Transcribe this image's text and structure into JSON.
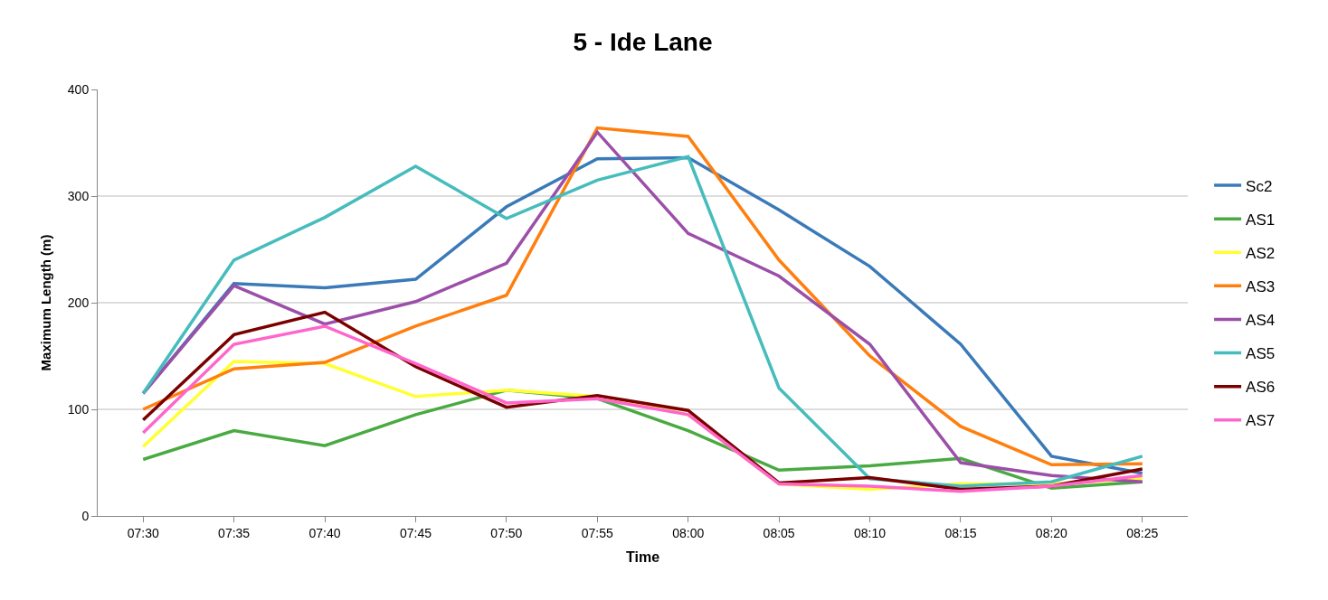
{
  "chart_data": {
    "type": "line",
    "title": "5 - Ide Lane",
    "xlabel": "Time",
    "ylabel": "Maximum Length (m)",
    "categories": [
      "07:30",
      "07:35",
      "07:40",
      "07:45",
      "07:50",
      "07:55",
      "08:00",
      "08:05",
      "08:10",
      "08:15",
      "08:20",
      "08:25"
    ],
    "ylim": [
      0,
      400
    ],
    "yticks": [
      0,
      100,
      200,
      300,
      400
    ],
    "grid": "y",
    "legend": "right",
    "marker": "none",
    "line_style": "solid",
    "series": [
      {
        "name": "Sc2",
        "color": "#3a7ab8",
        "values": [
          115,
          218,
          214,
          222,
          290,
          335,
          336,
          287,
          234,
          161,
          56,
          40
        ]
      },
      {
        "name": "AS1",
        "color": "#4aaa42",
        "values": [
          53,
          80,
          66,
          95,
          118,
          110,
          80,
          43,
          47,
          54,
          26,
          32
        ]
      },
      {
        "name": "AS2",
        "color": "#ffff33",
        "values": [
          65,
          145,
          143,
          112,
          118,
          112,
          95,
          30,
          25,
          30,
          30,
          35
        ]
      },
      {
        "name": "AS3",
        "color": "#ff7f0e",
        "values": [
          100,
          138,
          144,
          178,
          207,
          364,
          356,
          240,
          150,
          84,
          48,
          49
        ]
      },
      {
        "name": "AS4",
        "color": "#9b4fa8",
        "values": [
          115,
          216,
          180,
          201,
          237,
          360,
          265,
          225,
          161,
          50,
          38,
          32
        ]
      },
      {
        "name": "AS5",
        "color": "#46bcbc",
        "values": [
          115,
          240,
          280,
          328,
          279,
          315,
          337,
          120,
          35,
          28,
          32,
          56
        ]
      },
      {
        "name": "AS6",
        "color": "#7a0000",
        "values": [
          90,
          170,
          191,
          140,
          102,
          113,
          99,
          31,
          36,
          25,
          28,
          44
        ]
      },
      {
        "name": "AS7",
        "color": "#ff66cc",
        "values": [
          78,
          161,
          178,
          143,
          106,
          110,
          95,
          30,
          28,
          23,
          28,
          38
        ]
      }
    ]
  }
}
